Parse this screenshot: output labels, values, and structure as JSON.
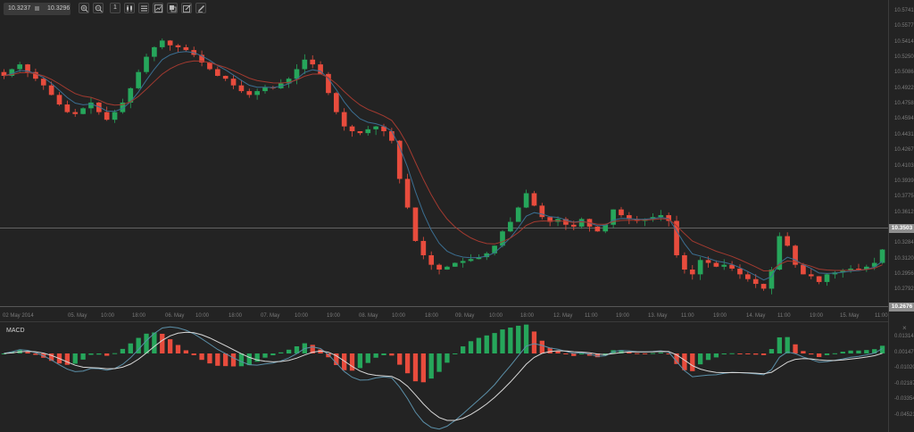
{
  "toolbar": {
    "bid": "10.3237",
    "ask": "10.3296",
    "separator_icon": "square-icon",
    "buttons": [
      {
        "name": "zoom-in-button",
        "icon": "zoom-in-icon"
      },
      {
        "name": "zoom-out-button",
        "icon": "zoom-out-icon"
      },
      {
        "name": "timeframe-button",
        "icon": "timeframe-icon",
        "label": "1"
      },
      {
        "name": "chart-type-button",
        "icon": "candlestick-icon"
      },
      {
        "name": "indicators-button",
        "icon": "lines-icon"
      },
      {
        "name": "drawing-button",
        "icon": "chart-box-icon"
      },
      {
        "name": "templates-button",
        "icon": "layers-icon"
      },
      {
        "name": "edit-button",
        "icon": "edit-icon"
      },
      {
        "name": "draw-tool-button",
        "icon": "pencil-icon"
      }
    ]
  },
  "colors": {
    "background": "#232323",
    "bull": "#26a65b",
    "bear": "#e84c3d",
    "ma_fast": "#3b6e91",
    "ma_slow": "#a33a30",
    "macd_line": "#5b8fa8",
    "signal_line": "#d9d9d9",
    "grid_line": "#6e6e6e"
  },
  "chart_data": [
    {
      "type": "candlestick",
      "title": "Price",
      "y_ticks": [
        "10.5741",
        "10.5577",
        "10.5414",
        "10.5250",
        "10.5086",
        "10.4922",
        "10.4758",
        "10.4594",
        "10.4431",
        "10.4267",
        "10.4103",
        "10.3939",
        "10.3775",
        "10.3612",
        "10.3448",
        "10.3284",
        "10.3120",
        "10.2956",
        "10.2792"
      ],
      "ylim": [
        10.2676,
        10.58
      ],
      "current_price_label": "10.3503",
      "low_marker_label": "10.2676",
      "x_ticks": [
        "02 May 2014",
        "05. May",
        "10:00",
        "18:00",
        "06. May",
        "10:00",
        "18:00",
        "07. May",
        "10:00",
        "19:00",
        "08. May",
        "10:00",
        "18:00",
        "09. May",
        "10:00",
        "18:00",
        "12. May",
        "11:00",
        "19:00",
        "13. May",
        "11:00",
        "19:00",
        "14. May",
        "11:00",
        "19:00",
        "15. May",
        "11:00"
      ],
      "overlays": [
        "MA fast (blue)",
        "MA slow (red)"
      ],
      "close_path": [
        10.508,
        10.515,
        10.52,
        10.512,
        10.505,
        10.498,
        10.488,
        10.478,
        10.47,
        10.468,
        10.474,
        10.48,
        10.47,
        10.462,
        10.47,
        10.48,
        10.495,
        10.512,
        10.528,
        10.538,
        10.545,
        10.54,
        10.538,
        10.535,
        10.53,
        10.522,
        10.515,
        10.508,
        10.505,
        10.498,
        10.492,
        10.488,
        10.492,
        10.496,
        10.495,
        10.5,
        10.505,
        10.515,
        10.525,
        10.52,
        10.51,
        10.49,
        10.47,
        10.455,
        10.45,
        10.448,
        10.452,
        10.455,
        10.45,
        10.44,
        10.4,
        10.37,
        10.335,
        10.32,
        10.31,
        10.305,
        10.308,
        10.312,
        10.314,
        10.316,
        10.318,
        10.322,
        10.33,
        10.345,
        10.355,
        10.37,
        10.385,
        10.372,
        10.36,
        10.355,
        10.358,
        10.352,
        10.35,
        10.358,
        10.35,
        10.345,
        10.352,
        10.368,
        10.362,
        10.358,
        10.356,
        10.358,
        10.36,
        10.362,
        10.356,
        10.32,
        10.305,
        10.3,
        10.315,
        10.312,
        10.308,
        10.31,
        10.306,
        10.3,
        10.295,
        10.29,
        10.285,
        10.305,
        10.34,
        10.33,
        10.31,
        10.3,
        10.298,
        10.292,
        10.3,
        10.302,
        10.304,
        10.306,
        10.305,
        10.308,
        10.312,
        10.326
      ]
    },
    {
      "type": "bar+line",
      "title": "MACD",
      "y_ticks": [
        "0.01314",
        "0.00147",
        "-0.01020",
        "-0.02187",
        "-0.03354",
        "-0.04521"
      ],
      "series": [
        {
          "name": "MACD histogram",
          "kind": "bar"
        },
        {
          "name": "MACD line",
          "kind": "line",
          "color": "#5b8fa8"
        },
        {
          "name": "Signal line",
          "kind": "line",
          "color": "#d9d9d9"
        }
      ]
    }
  ],
  "macd_panel": {
    "title": "MACD",
    "close_label": "×"
  }
}
